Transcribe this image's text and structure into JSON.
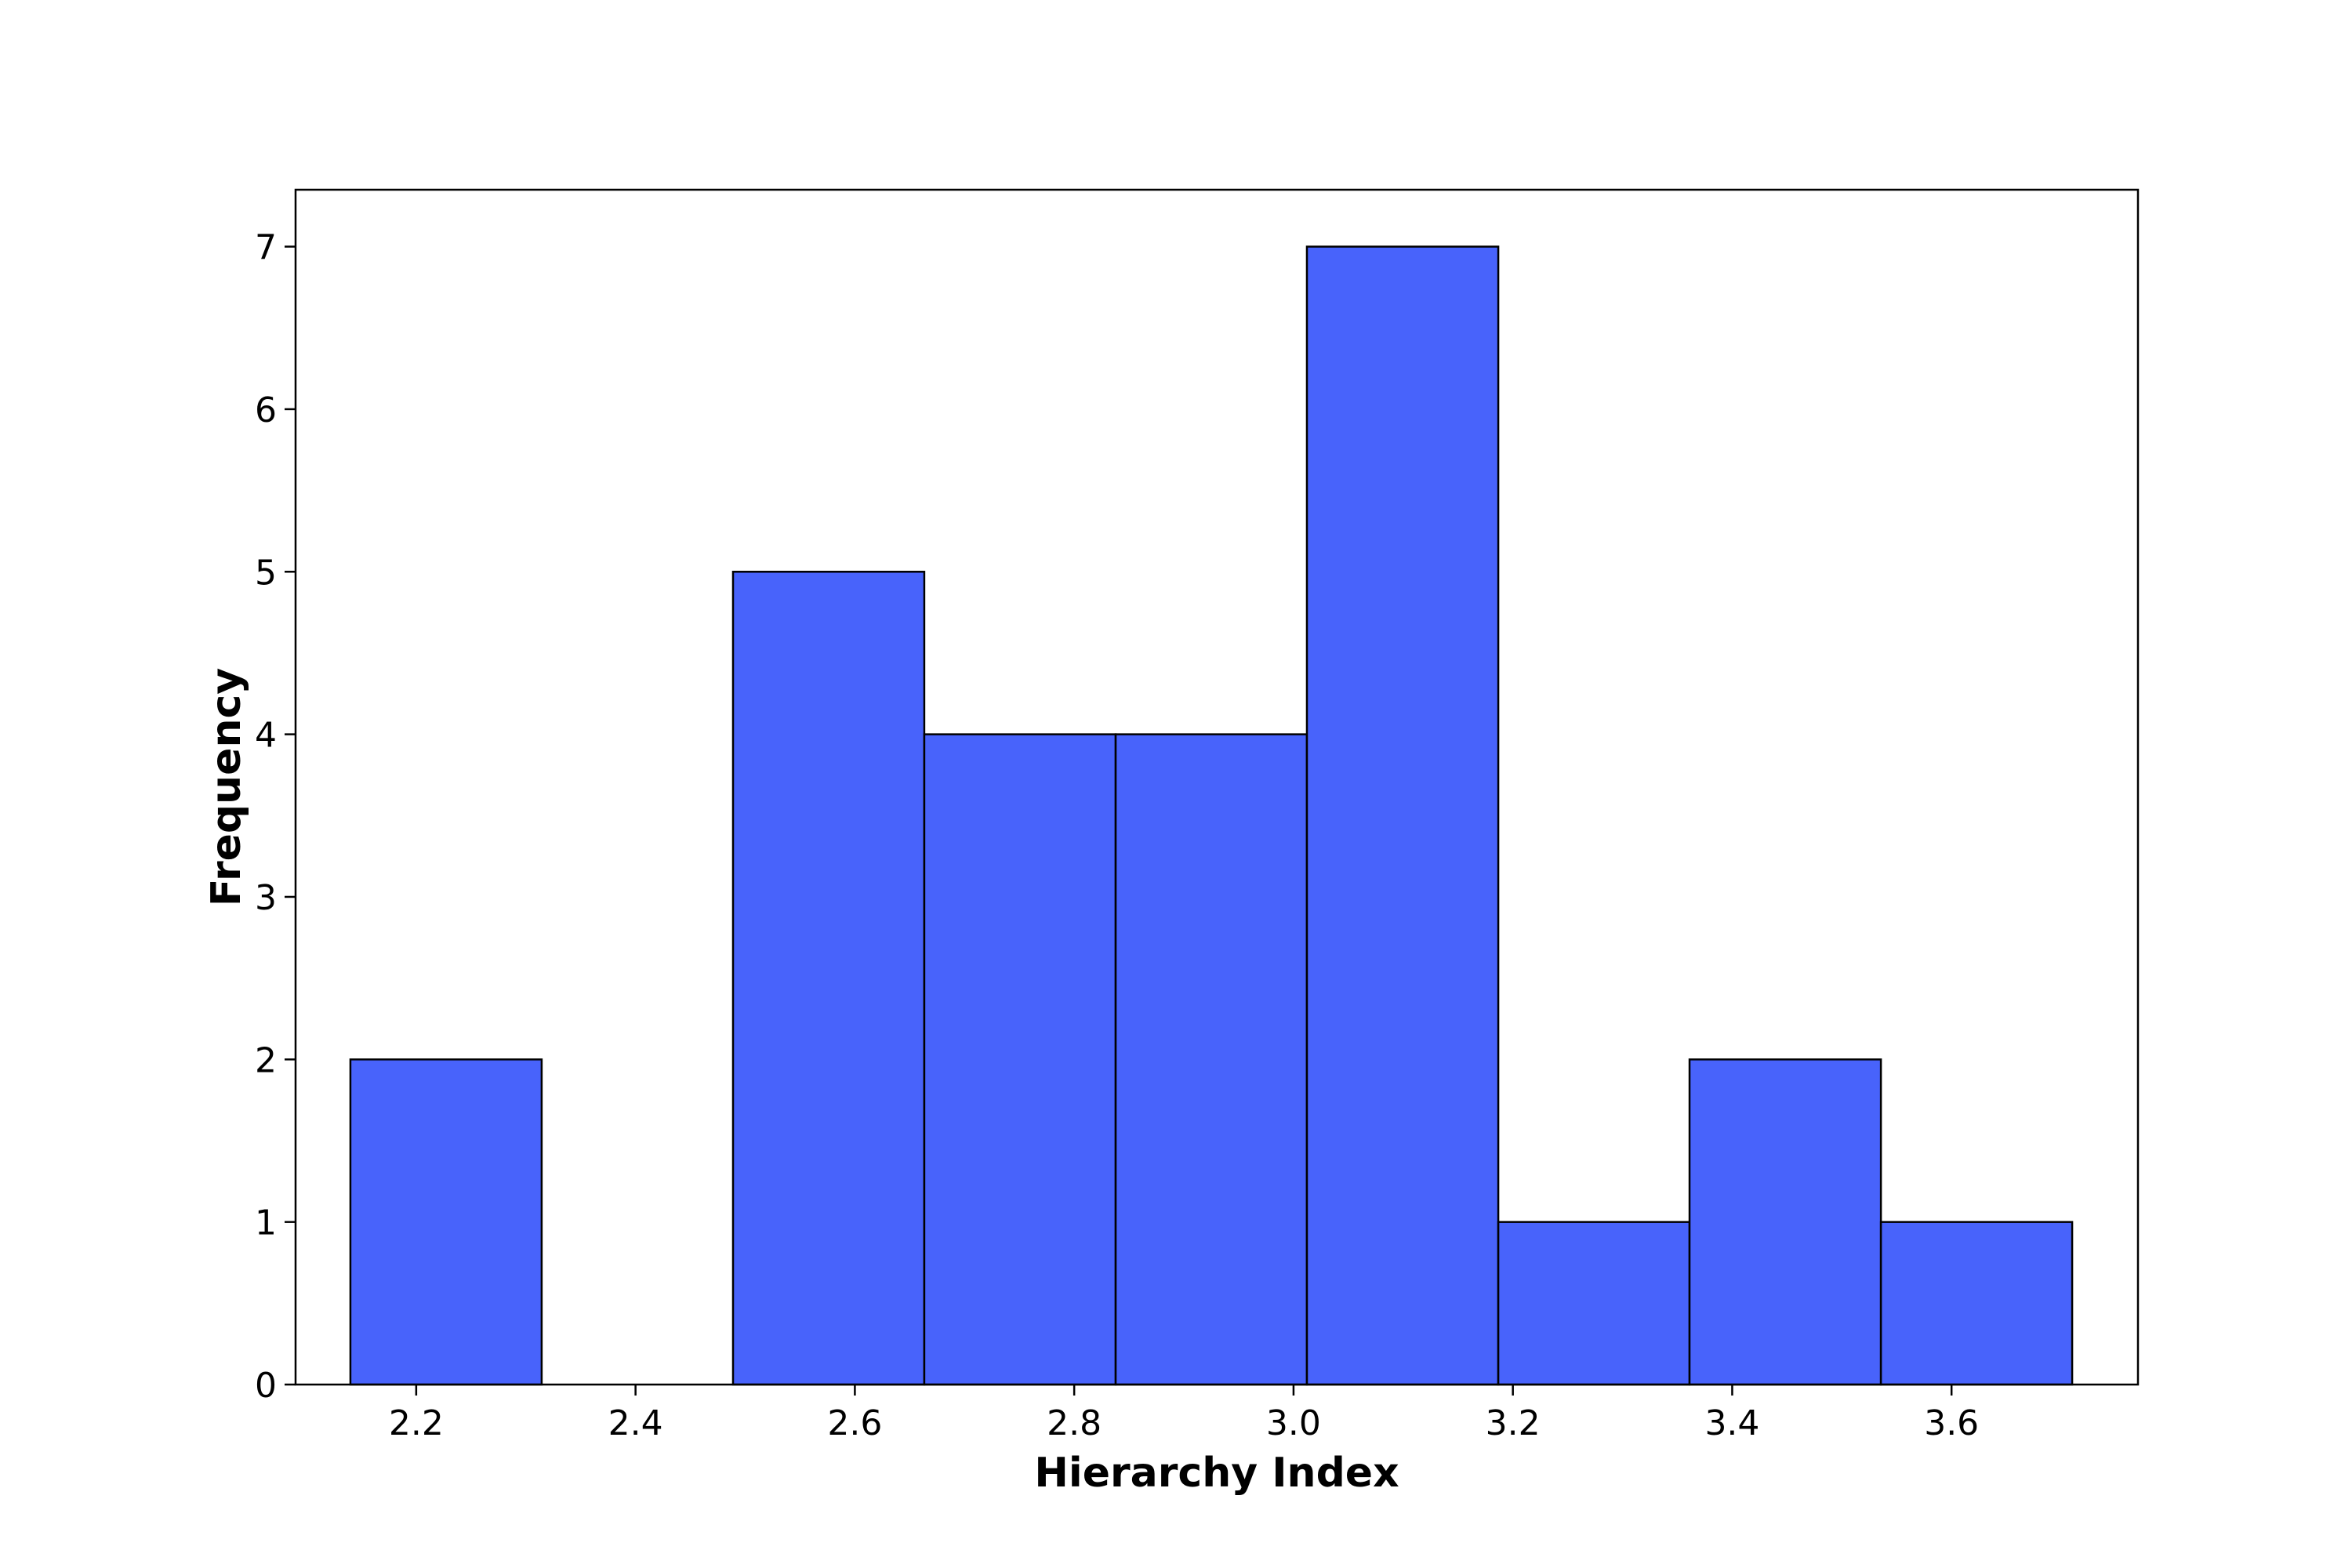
{
  "chart_data": {
    "type": "bar",
    "title": "",
    "xlabel": "Hierarchy Index",
    "ylabel": "Frequency",
    "bin_edges": [
      2.14,
      2.3144,
      2.4889,
      2.6633,
      2.8378,
      3.0122,
      3.1867,
      3.3611,
      3.5356,
      3.71
    ],
    "values": [
      2,
      0,
      5,
      4,
      4,
      7,
      1,
      2,
      1
    ],
    "xlim": [
      2.09,
      3.77
    ],
    "ylim": [
      0,
      7.35
    ],
    "xticks": [
      2.2,
      2.4,
      2.6,
      2.8,
      3.0,
      3.2,
      3.4,
      3.6
    ],
    "xtick_labels": [
      "2.2",
      "2.4",
      "2.6",
      "2.8",
      "3.0",
      "3.2",
      "3.4",
      "3.6"
    ],
    "yticks": [
      0,
      1,
      2,
      3,
      4,
      5,
      6,
      7
    ],
    "ytick_labels": [
      "0",
      "1",
      "2",
      "3",
      "4",
      "5",
      "6",
      "7"
    ],
    "grid": false,
    "legend": "none",
    "colors": {
      "bar_fill": "#4863fb",
      "bar_edge": "#000000",
      "axes": "#000000",
      "background": "#ffffff"
    }
  }
}
